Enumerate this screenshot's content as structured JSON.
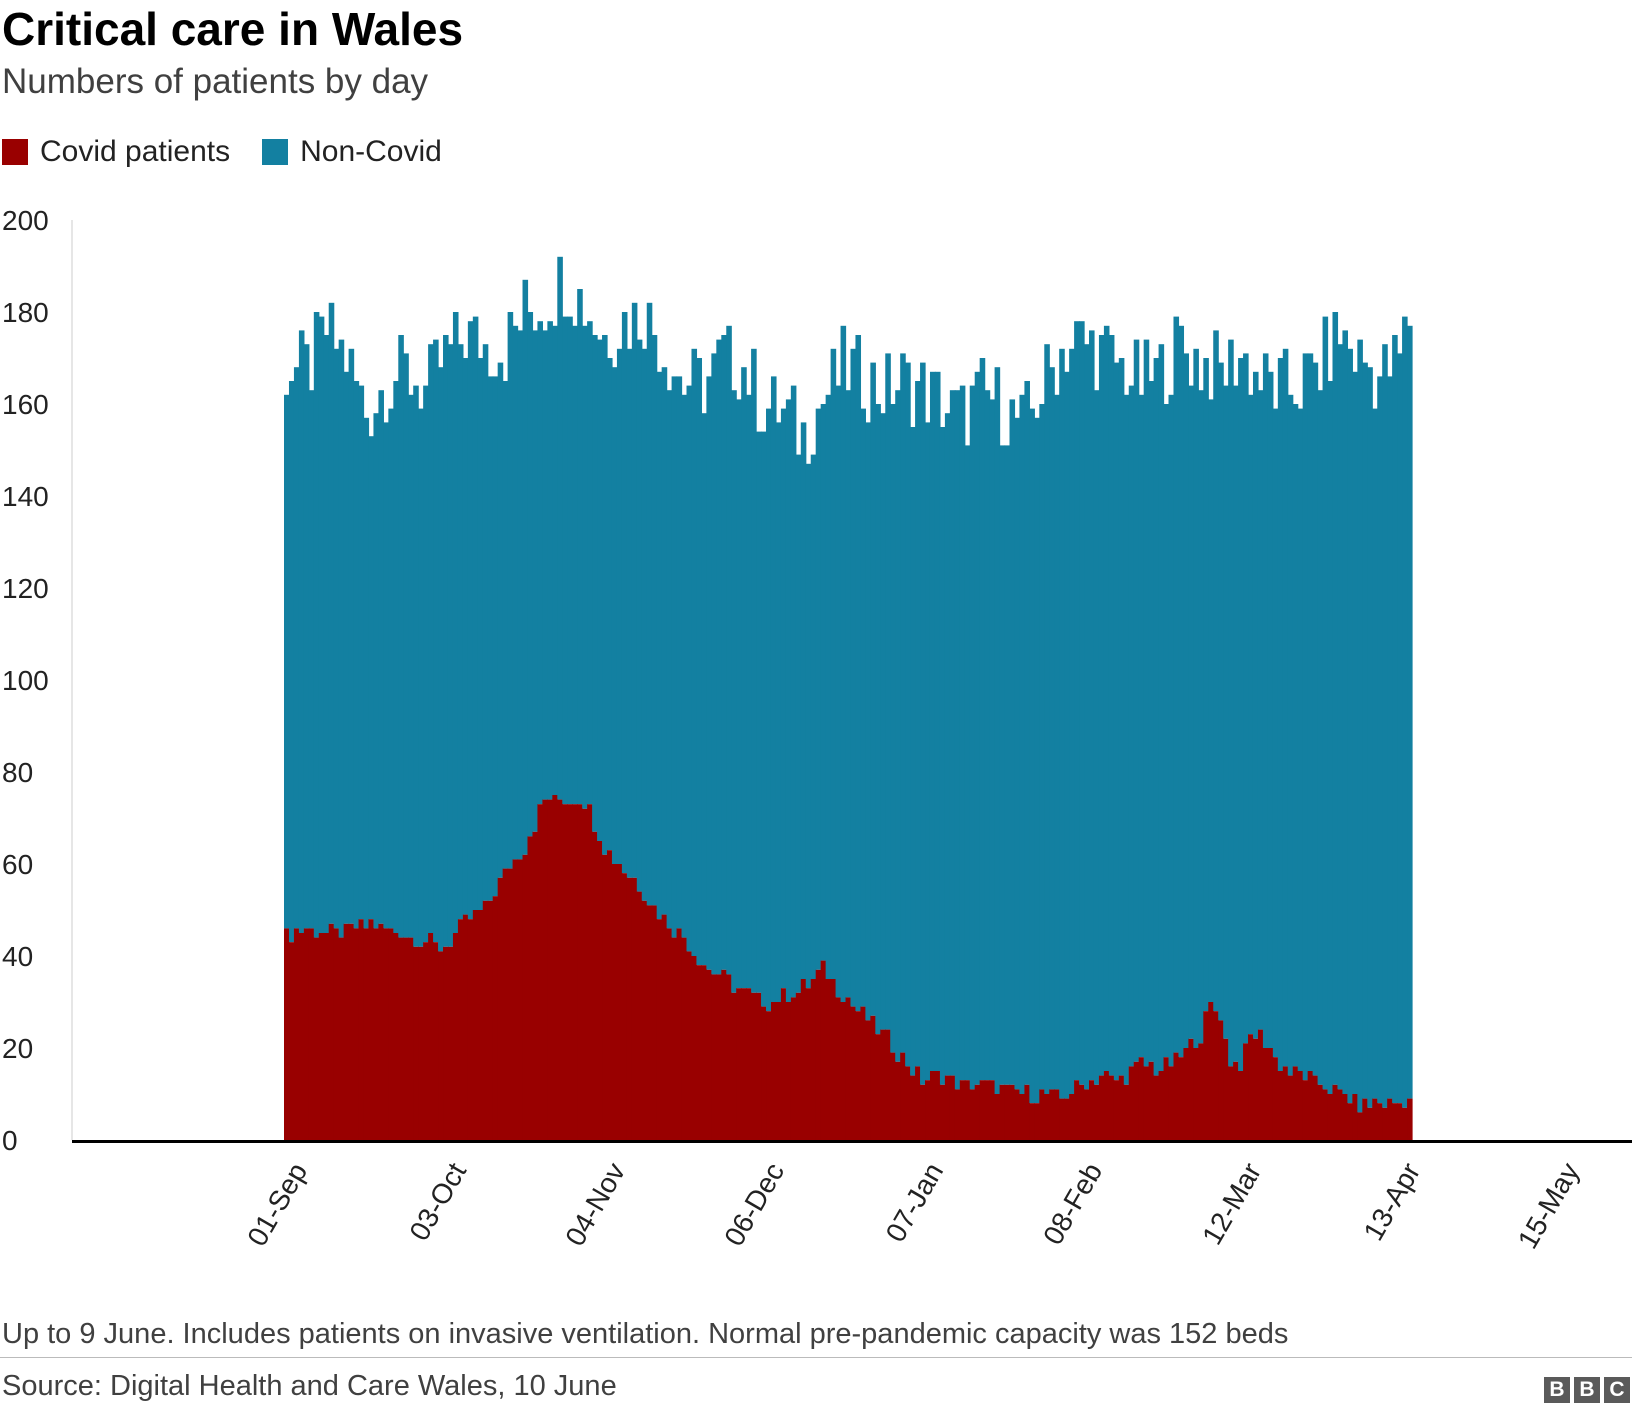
{
  "header": {
    "title": "Critical care in Wales",
    "subtitle": "Numbers of patients by day"
  },
  "legend": [
    {
      "label": "Covid patients",
      "color": "#990000"
    },
    {
      "label": "Non-Covid",
      "color": "#1380a1"
    }
  ],
  "footer": {
    "note": "Up to 9 June. Includes patients on invasive ventilation. Normal pre-pandemic capacity was 152 beds",
    "source": "Source: Digital Health and Care Wales, 10 June",
    "logo_letters": [
      "B",
      "B",
      "C"
    ]
  },
  "chart_data": {
    "type": "bar",
    "stacked": true,
    "ylim": [
      0,
      200
    ],
    "y_ticks": [
      0,
      20,
      40,
      60,
      80,
      100,
      120,
      140,
      160,
      180,
      200
    ],
    "x_ticks": [
      {
        "label": "01-Sep",
        "day_index": 0
      },
      {
        "label": "03-Oct",
        "day_index": 32
      },
      {
        "label": "04-Nov",
        "day_index": 64
      },
      {
        "label": "06-Dec",
        "day_index": 96
      },
      {
        "label": "07-Jan",
        "day_index": 128
      },
      {
        "label": "08-Feb",
        "day_index": 160
      },
      {
        "label": "12-Mar",
        "day_index": 192
      },
      {
        "label": "13-Apr",
        "day_index": 224
      },
      {
        "label": "15-May",
        "day_index": 256
      }
    ],
    "x_start": "2020-09-01",
    "x_end": "2021-06-09",
    "series": [
      {
        "name": "Covid patients",
        "color": "#990000",
        "keyframes": [
          [
            0,
            44
          ],
          [
            3,
            46
          ],
          [
            8,
            45
          ],
          [
            12,
            45
          ],
          [
            17,
            47
          ],
          [
            20,
            46
          ],
          [
            24,
            45
          ],
          [
            28,
            43
          ],
          [
            32,
            42
          ],
          [
            36,
            47
          ],
          [
            40,
            50
          ],
          [
            44,
            58
          ],
          [
            48,
            64
          ],
          [
            52,
            74
          ],
          [
            56,
            74
          ],
          [
            60,
            74
          ],
          [
            64,
            64
          ],
          [
            68,
            59
          ],
          [
            72,
            54
          ],
          [
            76,
            48
          ],
          [
            80,
            44
          ],
          [
            84,
            38
          ],
          [
            88,
            35
          ],
          [
            92,
            32
          ],
          [
            96,
            30
          ],
          [
            100,
            31
          ],
          [
            104,
            33
          ],
          [
            108,
            37
          ],
          [
            112,
            32
          ],
          [
            116,
            27
          ],
          [
            120,
            23
          ],
          [
            124,
            18
          ],
          [
            128,
            13
          ],
          [
            132,
            14
          ],
          [
            136,
            12
          ],
          [
            140,
            12
          ],
          [
            144,
            11
          ],
          [
            148,
            10
          ],
          [
            152,
            10
          ],
          [
            156,
            9
          ],
          [
            160,
            12
          ],
          [
            164,
            14
          ],
          [
            168,
            13
          ],
          [
            172,
            17
          ],
          [
            176,
            15
          ],
          [
            180,
            18
          ],
          [
            184,
            23
          ],
          [
            186,
            29
          ],
          [
            188,
            27
          ],
          [
            190,
            17
          ],
          [
            192,
            17
          ],
          [
            194,
            22
          ],
          [
            196,
            23
          ],
          [
            198,
            20
          ],
          [
            200,
            16
          ],
          [
            204,
            14
          ],
          [
            208,
            12
          ],
          [
            212,
            10
          ],
          [
            216,
            8
          ],
          [
            220,
            8
          ],
          [
            224,
            8
          ],
          [
            226,
            9
          ]
        ]
      },
      {
        "name": "Non-Covid",
        "color": "#1380a1",
        "total_keyframes": [
          [
            0,
            168
          ],
          [
            4,
            167
          ],
          [
            8,
            176
          ],
          [
            12,
            170
          ],
          [
            16,
            158
          ],
          [
            20,
            165
          ],
          [
            24,
            167
          ],
          [
            28,
            163
          ],
          [
            32,
            170
          ],
          [
            36,
            175
          ],
          [
            40,
            173
          ],
          [
            44,
            172
          ],
          [
            48,
            180
          ],
          [
            52,
            182
          ],
          [
            56,
            188
          ],
          [
            60,
            182
          ],
          [
            64,
            175
          ],
          [
            68,
            178
          ],
          [
            72,
            180
          ],
          [
            76,
            172
          ],
          [
            80,
            165
          ],
          [
            84,
            164
          ],
          [
            88,
            170
          ],
          [
            92,
            168
          ],
          [
            96,
            160
          ],
          [
            100,
            158
          ],
          [
            104,
            153
          ],
          [
            108,
            161
          ],
          [
            112,
            168
          ],
          [
            116,
            166
          ],
          [
            120,
            163
          ],
          [
            124,
            165
          ],
          [
            128,
            163
          ],
          [
            132,
            160
          ],
          [
            136,
            157
          ],
          [
            140,
            162
          ],
          [
            144,
            160
          ],
          [
            148,
            155
          ],
          [
            152,
            163
          ],
          [
            156,
            172
          ],
          [
            160,
            174
          ],
          [
            164,
            171
          ],
          [
            168,
            168
          ],
          [
            172,
            165
          ],
          [
            176,
            167
          ],
          [
            180,
            173
          ],
          [
            184,
            169
          ],
          [
            188,
            167
          ],
          [
            192,
            171
          ],
          [
            196,
            165
          ],
          [
            200,
            163
          ],
          [
            204,
            164
          ],
          [
            208,
            168
          ],
          [
            212,
            175
          ],
          [
            216,
            170
          ],
          [
            220,
            166
          ],
          [
            224,
            170
          ],
          [
            226,
            179
          ]
        ]
      }
    ]
  }
}
